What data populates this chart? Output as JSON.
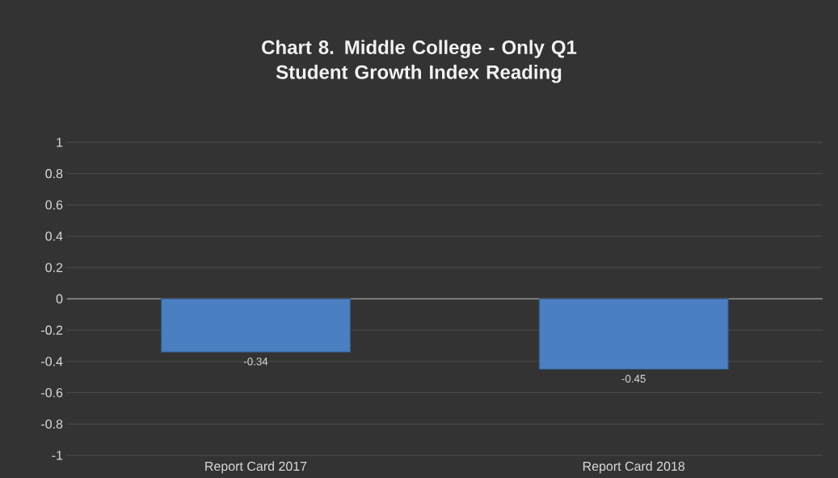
{
  "chart_data": {
    "type": "bar",
    "title": "Chart 8. Middle College - Only Q1 Student Growth Index Reading",
    "categories": [
      "Report Card 2017",
      "Report Card 2018"
    ],
    "values": [
      -0.34,
      -0.45
    ],
    "color": "#4a7fc1",
    "data_labels": true,
    "ylim": [
      -1,
      1
    ],
    "yticks": [
      -1,
      -0.8,
      -0.6,
      -0.4,
      -0.2,
      0,
      0.2,
      0.4,
      0.6,
      0.8,
      1
    ],
    "grid": "y"
  }
}
